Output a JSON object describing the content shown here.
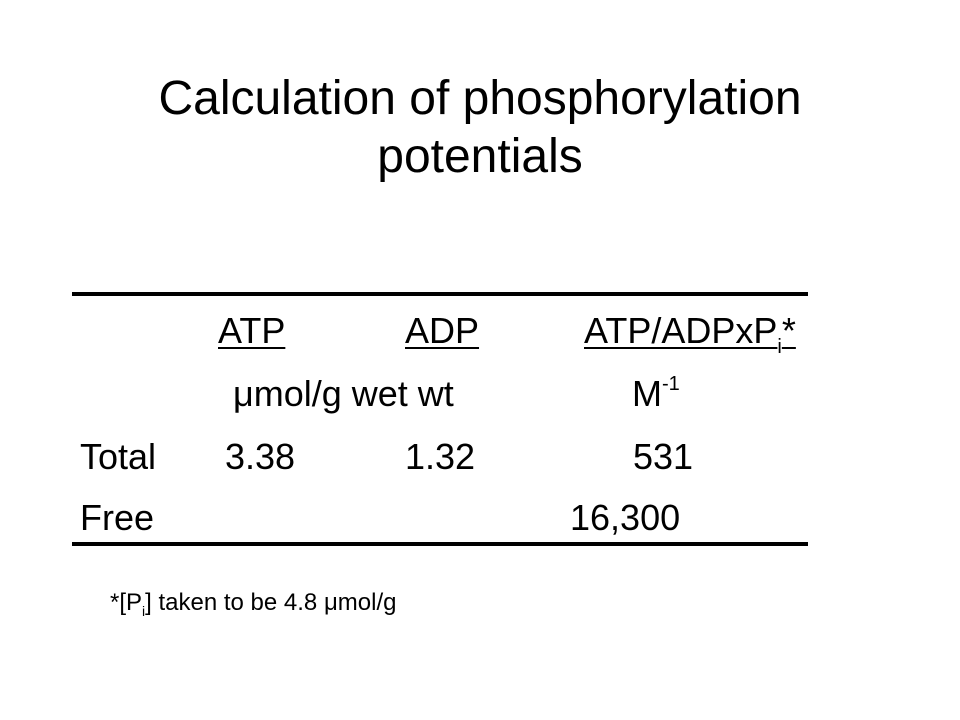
{
  "slide": {
    "title_line1": "Calculation of phosphorylation",
    "title_line2": "potentials"
  },
  "table": {
    "headers": {
      "atp": "ATP",
      "adp": "ADP",
      "ratio_main": "ATP/ADPxP",
      "ratio_sub": "i",
      "ratio_star": "*"
    },
    "units": {
      "mu": "μ",
      "conc": "mol/g wet wt",
      "molar": "M",
      "molar_exp": "-1"
    },
    "rows": [
      {
        "label": "Total",
        "atp": "3.38",
        "adp": "1.32",
        "ratio": "531"
      },
      {
        "label": "Free",
        "atp": "",
        "adp": "",
        "ratio": "16,300"
      }
    ]
  },
  "footnote": {
    "prefix": "*[P",
    "sub": "i",
    "suffix": "] taken to be 4.8 ",
    "mu": "μ",
    "unit": "mol/g"
  }
}
